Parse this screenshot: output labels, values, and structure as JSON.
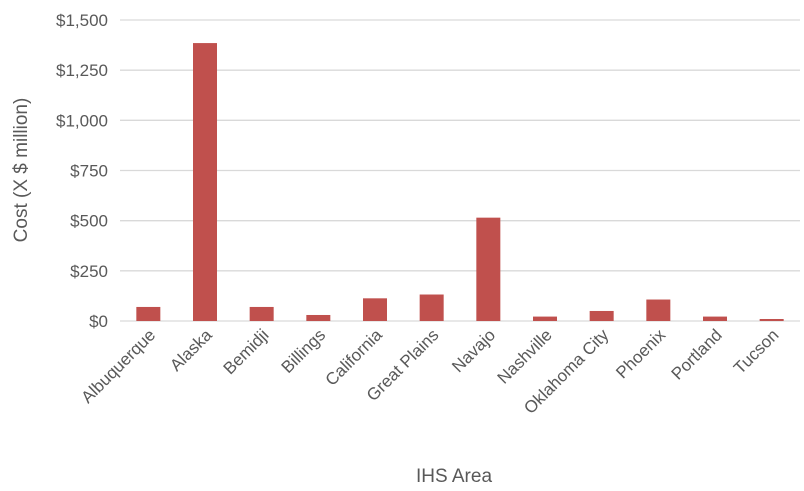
{
  "chart_data": {
    "type": "bar",
    "title": "",
    "xlabel": "IHS Area",
    "ylabel": "Cost (X $ million)",
    "categories": [
      "Albuquerque",
      "Alaska",
      "Bemidji",
      "Billings",
      "California",
      "Great Plains",
      "Navajo",
      "Nashville",
      "Oklahoma City",
      "Phoenix",
      "Portland",
      "Tucson"
    ],
    "values": [
      70,
      1385,
      70,
      30,
      113,
      132,
      515,
      22,
      50,
      107,
      22,
      10
    ],
    "ylim": [
      0,
      1500
    ],
    "yticks": [
      0,
      250,
      500,
      750,
      1000,
      1250,
      1500
    ],
    "ytick_labels": [
      "$0",
      "$250",
      "$500",
      "$750",
      "$1,000",
      "$1,250",
      "$1,500"
    ],
    "grid": true,
    "legend": "none",
    "bar_color": "#c0504d"
  }
}
